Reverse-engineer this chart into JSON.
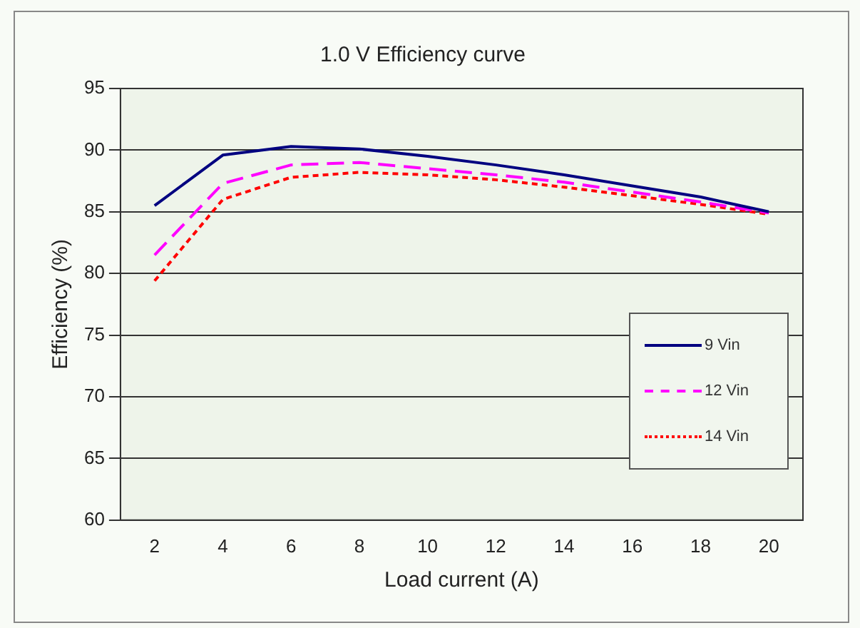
{
  "chart_data": {
    "type": "line",
    "title": "1.0 V Efficiency curve",
    "xlabel": "Load current (A)",
    "ylabel": "Efficiency (%)",
    "categories": [
      "2",
      "4",
      "6",
      "8",
      "10",
      "12",
      "14",
      "16",
      "18",
      "20"
    ],
    "series": [
      {
        "name": "9 Vin",
        "color": "#000080",
        "line_style": "solid",
        "values": [
          85.5,
          89.6,
          90.3,
          90.1,
          89.5,
          88.8,
          88.0,
          87.1,
          86.2,
          85.0
        ]
      },
      {
        "name": "12 Vin",
        "color": "#ff00ff",
        "line_style": "dashed",
        "values": [
          81.5,
          87.3,
          88.8,
          89.0,
          88.5,
          88.0,
          87.4,
          86.6,
          85.8,
          84.9
        ]
      },
      {
        "name": "14 Vin",
        "color": "#ff0000",
        "line_style": "dotted",
        "values": [
          79.4,
          86.0,
          87.8,
          88.2,
          88.0,
          87.6,
          87.0,
          86.3,
          85.6,
          84.8
        ]
      }
    ],
    "ylim": [
      60,
      95
    ],
    "yticks": [
      60,
      65,
      70,
      75,
      80,
      85,
      90,
      95
    ],
    "grid": "y",
    "legend": "right",
    "marker": "none"
  }
}
